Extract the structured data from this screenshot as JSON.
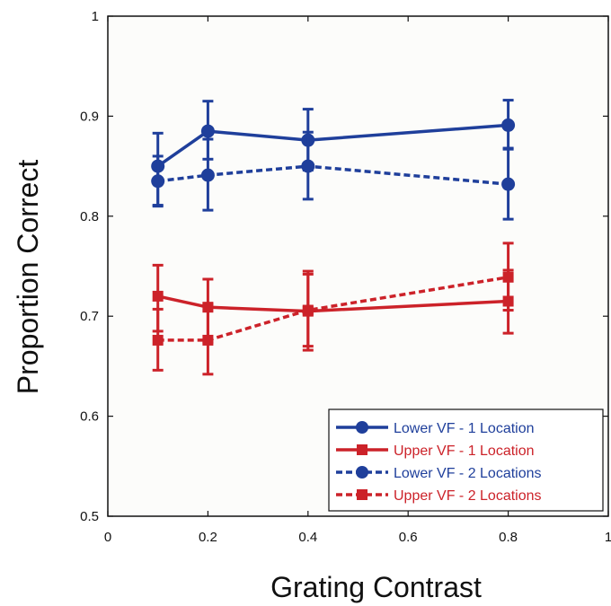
{
  "chart_data": {
    "type": "line",
    "xlabel": "Grating Contrast",
    "ylabel": "Proportion Correct",
    "xlim": [
      0,
      1
    ],
    "ylim": [
      0.5,
      1
    ],
    "x_ticks": [
      0,
      0.2,
      0.4,
      0.6,
      0.8,
      1
    ],
    "x_tick_labels": [
      "0",
      "0.2",
      "0.4",
      "0.6",
      "0.8",
      "1"
    ],
    "y_ticks": [
      0.5,
      0.6,
      0.7,
      0.8,
      0.9,
      1
    ],
    "y_tick_labels": [
      "0.5",
      "0.6",
      "0.7",
      "0.8",
      "0.9",
      "1"
    ],
    "grid": false,
    "legend_position": "bottom-right",
    "series": [
      {
        "name": "Lower VF - 1 Location",
        "color": "#1f3f9b",
        "line_style": "solid",
        "marker": "circle",
        "x": [
          0.1,
          0.2,
          0.4,
          0.8
        ],
        "y": [
          0.85,
          0.885,
          0.876,
          0.891
        ],
        "err_low": [
          0.81,
          0.857,
          0.846,
          0.867
        ],
        "err_high": [
          0.883,
          0.915,
          0.907,
          0.916
        ]
      },
      {
        "name": "Upper VF - 1 Location",
        "color": "#cc2229",
        "line_style": "solid",
        "marker": "square",
        "x": [
          0.1,
          0.2,
          0.4,
          0.8
        ],
        "y": [
          0.72,
          0.709,
          0.705,
          0.715
        ],
        "err_low": [
          0.685,
          0.674,
          0.666,
          0.683
        ],
        "err_high": [
          0.751,
          0.737,
          0.745,
          0.746
        ]
      },
      {
        "name": "Lower VF - 2 Locations",
        "color": "#1f3f9b",
        "line_style": "dashed",
        "marker": "circle",
        "x": [
          0.1,
          0.2,
          0.4,
          0.8
        ],
        "y": [
          0.835,
          0.841,
          0.85,
          0.832
        ],
        "err_low": [
          0.811,
          0.806,
          0.817,
          0.797
        ],
        "err_high": [
          0.86,
          0.877,
          0.884,
          0.868
        ]
      },
      {
        "name": "Upper VF - 2 Locations",
        "color": "#cc2229",
        "line_style": "dashed",
        "marker": "square",
        "x": [
          0.1,
          0.2,
          0.4,
          0.8
        ],
        "y": [
          0.676,
          0.676,
          0.706,
          0.739
        ],
        "err_low": [
          0.646,
          0.642,
          0.67,
          0.706
        ],
        "err_high": [
          0.707,
          0.712,
          0.742,
          0.773
        ]
      }
    ]
  }
}
